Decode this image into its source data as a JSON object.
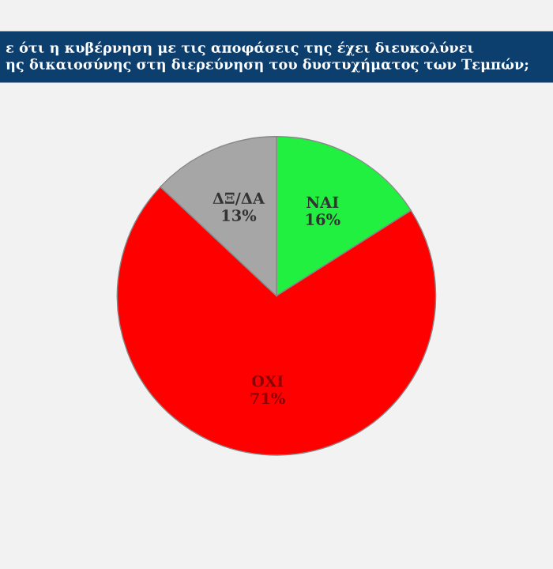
{
  "chart_data": {
    "type": "pie",
    "title": "ε ότι η κυβέρνηση με τις αποφάσεις της έχει διευκολύνει\nης δικαιοσύνης στη διερεύνηση του δυστυχήματος των Τεμπών;",
    "categories": [
      "ΝΑΙ",
      "ΟΧΙ",
      "ΔΞ/ΔΑ"
    ],
    "values": [
      16,
      71,
      13
    ],
    "value_labels": [
      "16%",
      "71%",
      "13%"
    ],
    "colors": [
      "#22f040",
      "#ff0000",
      "#a6a6a6"
    ],
    "legend": false
  }
}
